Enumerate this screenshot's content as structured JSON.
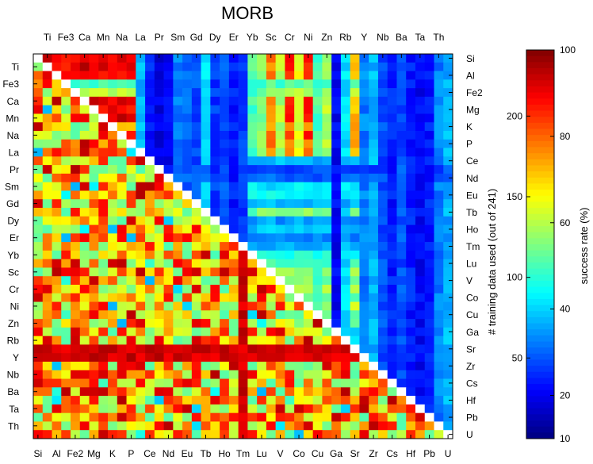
{
  "chart_data": {
    "type": "heatmap",
    "title": "MORB",
    "x_top_tick_labels": [
      "Ti",
      "Fe3",
      "Ca",
      "Mn",
      "Na",
      "La",
      "Pr",
      "Sm",
      "Gd",
      "Dy",
      "Er",
      "Yb",
      "Sc",
      "Cr",
      "Ni",
      "Zn",
      "Rb",
      "Y",
      "Nb",
      "Ba",
      "Ta",
      "Th"
    ],
    "y_left_tick_labels": [
      "Ti",
      "Fe3",
      "Ca",
      "Mn",
      "Na",
      "La",
      "Pr",
      "Sm",
      "Gd",
      "Dy",
      "Er",
      "Yb",
      "Sc",
      "Cr",
      "Ni",
      "Zn",
      "Rb",
      "Y",
      "Nb",
      "Ba",
      "Ta",
      "Th"
    ],
    "x_bottom_tick_labels": [
      "Si",
      "Al",
      "Fe2",
      "Mg",
      "K",
      "P",
      "Ce",
      "Nd",
      "Eu",
      "Tb",
      "Ho",
      "Tm",
      "Lu",
      "V",
      "Co",
      "Cu",
      "Ga",
      "Sr",
      "Zr",
      "Cs",
      "Hf",
      "Pb",
      "U"
    ],
    "y_right_tick_labels": [
      "Si",
      "Al",
      "Fe2",
      "Mg",
      "K",
      "P",
      "Ce",
      "Nd",
      "Eu",
      "Tb",
      "Ho",
      "Tm",
      "Lu",
      "V",
      "Co",
      "Cu",
      "Ga",
      "Sr",
      "Zr",
      "Cs",
      "Hf",
      "Pb",
      "U"
    ],
    "elements_order": [
      "Si",
      "Ti",
      "Al",
      "Fe3",
      "Fe2",
      "Ca",
      "Mg",
      "Mn",
      "K",
      "Na",
      "P",
      "La",
      "Ce",
      "Pr",
      "Nd",
      "Sm",
      "Eu",
      "Gd",
      "Tb",
      "Dy",
      "Ho",
      "Er",
      "Tm",
      "Yb",
      "Lu",
      "Sc",
      "V",
      "Cr",
      "Co",
      "Ni",
      "Cu",
      "Zn",
      "Ga",
      "Rb",
      "Sr",
      "Y",
      "Zr",
      "Nb",
      "Cs",
      "Ba",
      "Hf",
      "Ta",
      "Pb",
      "Th",
      "U"
    ],
    "n_elements": 45,
    "upper_triangle": {
      "quantity": "# training data used (out of 241)",
      "colorbar_ticks": [
        50,
        100,
        150,
        200
      ],
      "range": [
        0,
        241
      ],
      "row_level_fraction": [
        0.9,
        0.92,
        0.85,
        0.45,
        0.55,
        0.95,
        0.88,
        0.95,
        0.7,
        0.9,
        0.75,
        0.78,
        0.3,
        0.2,
        0.22,
        0.35,
        0.38,
        0.3,
        0.5,
        0.28,
        0.32,
        0.25,
        0.3,
        0.4,
        0.45,
        0.52,
        0.5,
        0.55,
        0.48,
        0.6,
        0.45,
        0.5,
        0.3,
        0.35,
        0.6,
        0.42,
        0.48,
        0.4,
        0.3,
        0.4,
        0.35,
        0.3,
        0.32,
        0.4,
        0.5
      ],
      "column_level_fraction": [
        0.85,
        0.9,
        0.88,
        0.85,
        0.86,
        0.92,
        0.9,
        0.93,
        0.9,
        0.92,
        0.88,
        0.3,
        0.15,
        0.1,
        0.12,
        0.25,
        0.22,
        0.2,
        0.35,
        0.18,
        0.2,
        0.15,
        0.18,
        0.45,
        0.5,
        0.75,
        0.55,
        0.85,
        0.6,
        0.85,
        0.45,
        0.55,
        0.12,
        0.35,
        0.7,
        0.25,
        0.3,
        0.2,
        0.15,
        0.2,
        0.15,
        0.12,
        0.15,
        0.25,
        0.3
      ]
    },
    "lower_triangle": {
      "quantity": "success rate (%)",
      "colorbar_ticks": [
        10,
        20,
        40,
        60,
        80,
        100
      ],
      "range": [
        10,
        100
      ],
      "base_success_rate_percent": 72,
      "high_rate_rows": [
        "Y",
        "Sr"
      ],
      "high_rate_columns": [
        "Tm"
      ]
    },
    "right_ylabel": "# training data used (out of 241)",
    "colorbar_label": "success rate (%)",
    "colormap": "jet",
    "diagonal_color": "#ffffff"
  }
}
